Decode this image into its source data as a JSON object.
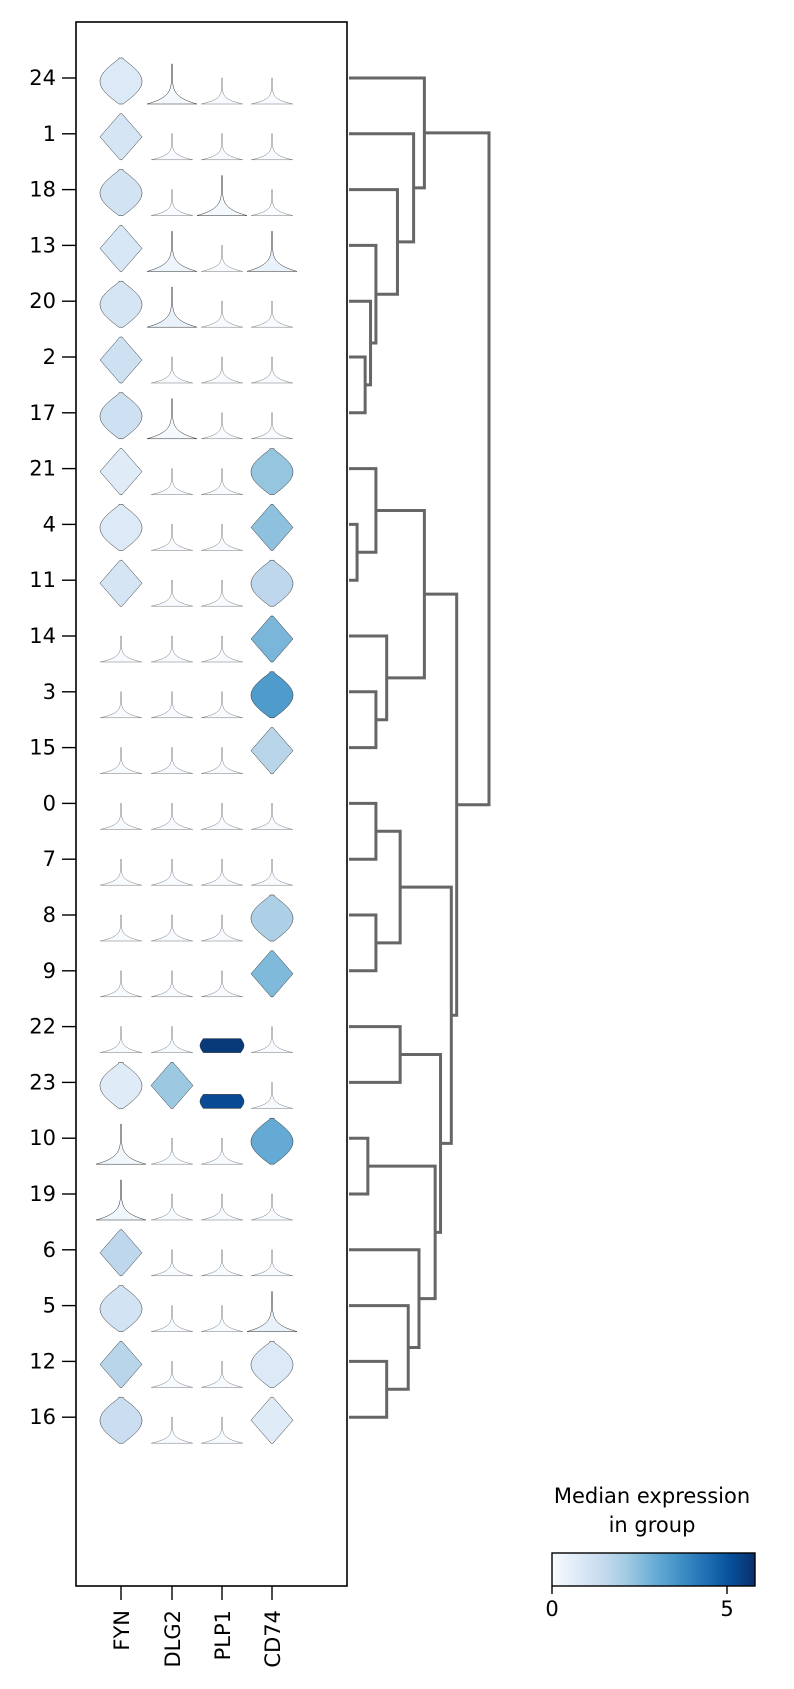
{
  "chart_data": {
    "type": "stacked-violin",
    "genes": [
      "FYN",
      "DLG2",
      "PLP1",
      "CD74"
    ],
    "groups": [
      "24",
      "1",
      "18",
      "13",
      "20",
      "2",
      "17",
      "21",
      "4",
      "11",
      "14",
      "3",
      "15",
      "0",
      "7",
      "8",
      "9",
      "22",
      "23",
      "10",
      "19",
      "6",
      "5",
      "12",
      "16"
    ],
    "median_expression": {
      "24": [
        0.8,
        0.1,
        0.0,
        0.0
      ],
      "1": [
        1.0,
        0.0,
        0.0,
        0.0
      ],
      "18": [
        1.1,
        0.0,
        0.1,
        0.0
      ],
      "13": [
        0.9,
        0.3,
        0.0,
        0.4
      ],
      "20": [
        1.0,
        0.4,
        0.0,
        0.0
      ],
      "2": [
        1.2,
        0.0,
        0.0,
        0.0
      ],
      "17": [
        1.2,
        0.1,
        0.0,
        0.0
      ],
      "21": [
        0.7,
        0.0,
        0.0,
        2.3
      ],
      "4": [
        0.8,
        0.0,
        0.0,
        2.4
      ],
      "11": [
        1.0,
        0.0,
        0.0,
        1.6
      ],
      "14": [
        0.0,
        0.0,
        0.0,
        2.7
      ],
      "3": [
        0.0,
        0.0,
        0.0,
        3.4
      ],
      "15": [
        0.0,
        0.0,
        0.0,
        1.7
      ],
      "0": [
        0.0,
        0.0,
        0.0,
        0.0
      ],
      "7": [
        0.0,
        0.0,
        0.0,
        0.0
      ],
      "8": [
        0.0,
        0.0,
        0.0,
        1.9
      ],
      "9": [
        0.0,
        0.0,
        0.0,
        2.6
      ],
      "22": [
        0.0,
        0.0,
        5.6,
        0.0
      ],
      "23": [
        0.7,
        2.2,
        5.2,
        0.0
      ],
      "10": [
        0.2,
        0.0,
        0.0,
        3.0
      ],
      "19": [
        0.2,
        0.0,
        0.0,
        0.0
      ],
      "6": [
        1.6,
        0.0,
        0.0,
        0.0
      ],
      "5": [
        1.1,
        0.0,
        0.0,
        0.4
      ],
      "12": [
        1.7,
        0.0,
        0.0,
        0.8
      ],
      "16": [
        1.3,
        0.0,
        0.0,
        0.7
      ]
    },
    "colorbar": {
      "title_line1": "Median expression",
      "title_line2": "in group",
      "min": 0,
      "max": 5.8,
      "ticks": [
        "0",
        "5"
      ],
      "tick_values": [
        0,
        5
      ],
      "colormap": "Blues",
      "colors": [
        "#f7fbff",
        "#deebf7",
        "#c6dbef",
        "#9ecae1",
        "#6baed6",
        "#4292c6",
        "#2171b5",
        "#08519c",
        "#08306b"
      ]
    },
    "dendrogram": {
      "leaf_order": [
        "24",
        "1",
        "18",
        "13",
        "20",
        "2",
        "17",
        "21",
        "4",
        "11",
        "14",
        "3",
        "15",
        "0",
        "7",
        "8",
        "9",
        "22",
        "23",
        "10",
        "19",
        "6",
        "5",
        "12",
        "16"
      ],
      "merges": [
        {
          "a": 5,
          "b": 6,
          "h": 0.3
        },
        {
          "a": 4,
          "b": 25,
          "h": 0.4
        },
        {
          "a": 3,
          "b": 26,
          "h": 0.5
        },
        {
          "a": 2,
          "b": 27,
          "h": 0.9
        },
        {
          "a": 1,
          "b": 28,
          "h": 1.2
        },
        {
          "a": 0,
          "b": 29,
          "h": 1.4
        },
        {
          "a": 8,
          "b": 9,
          "h": 0.15
        },
        {
          "a": 7,
          "b": 31,
          "h": 0.5
        },
        {
          "a": 11,
          "b": 12,
          "h": 0.5
        },
        {
          "a": 10,
          "b": 33,
          "h": 0.7
        },
        {
          "a": 32,
          "b": 34,
          "h": 1.4
        },
        {
          "a": 13,
          "b": 14,
          "h": 0.5
        },
        {
          "a": 15,
          "b": 16,
          "h": 0.5
        },
        {
          "a": 36,
          "b": 37,
          "h": 0.95
        },
        {
          "a": 17,
          "b": 18,
          "h": 0.95
        },
        {
          "a": 19,
          "b": 20,
          "h": 0.35
        },
        {
          "a": 23,
          "b": 24,
          "h": 0.7
        },
        {
          "a": 22,
          "b": 41,
          "h": 1.1
        },
        {
          "a": 21,
          "b": 42,
          "h": 1.3
        },
        {
          "a": 40,
          "b": 43,
          "h": 1.6
        },
        {
          "a": 39,
          "b": 44,
          "h": 1.7
        },
        {
          "a": 38,
          "b": 45,
          "h": 1.9
        },
        {
          "a": 35,
          "b": 46,
          "h": 2.0
        },
        {
          "a": 30,
          "b": 47,
          "h": 2.6
        }
      ]
    }
  }
}
